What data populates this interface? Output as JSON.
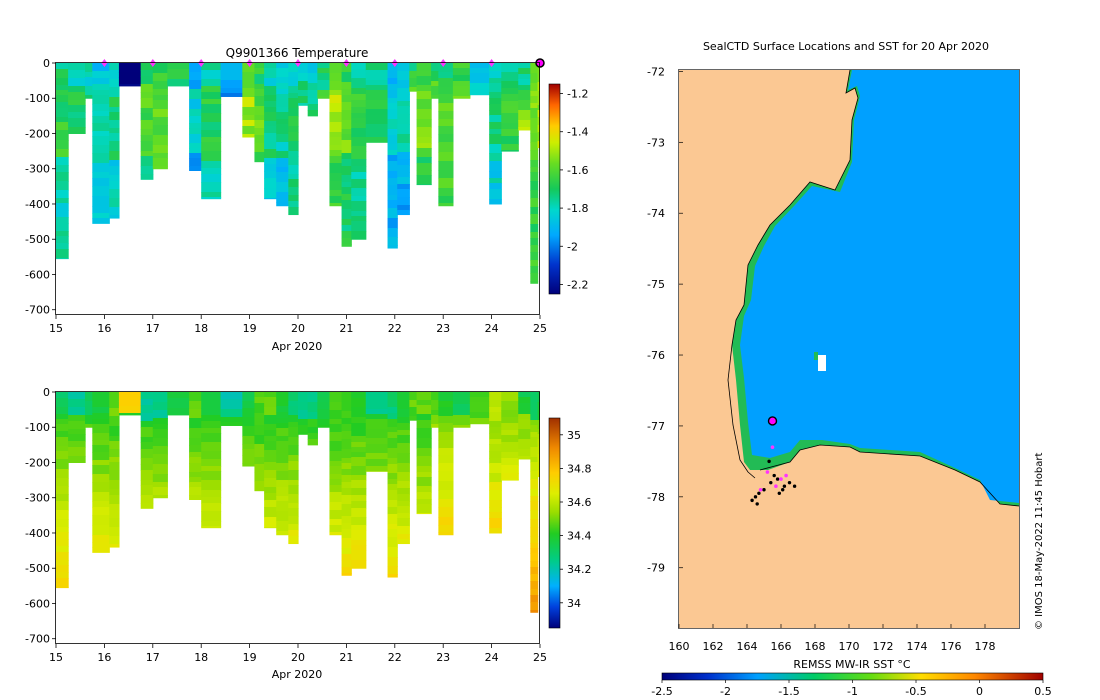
{
  "chart_data": [
    {
      "type": "heatmap",
      "title": "Q9901366  Temperature",
      "variable": "temperature",
      "xlabel": "Apr 2020",
      "x_ticks": [
        "15",
        "16",
        "17",
        "18",
        "19",
        "20",
        "21",
        "22",
        "23",
        "24",
        "25"
      ],
      "xlim": [
        15,
        25
      ],
      "y_ticks": [
        "0",
        "-100",
        "-200",
        "-300",
        "-400",
        "-500",
        "-600",
        "-700"
      ],
      "ylim": [
        -715,
        0
      ],
      "marker_days": [
        16,
        17,
        18,
        19,
        20,
        21,
        22,
        23,
        24
      ],
      "current_marker_day": 25,
      "colorbar": {
        "ticks": [
          "-1.2",
          "-1.4",
          "-1.6",
          "-1.8",
          "-2",
          "-2.2"
        ],
        "range": [
          -2.25,
          -1.15
        ]
      },
      "profiles": [
        {
          "day": 15.0,
          "depth": 555
        },
        {
          "day": 15.25,
          "depth": 200
        },
        {
          "day": 15.6,
          "depth": 100
        },
        {
          "day": 15.75,
          "depth": 455
        },
        {
          "day": 16.1,
          "depth": 440
        },
        {
          "day": 16.3,
          "depth": 65
        },
        {
          "day": 16.75,
          "depth": 330
        },
        {
          "day": 17.0,
          "depth": 300
        },
        {
          "day": 17.3,
          "depth": 65
        },
        {
          "day": 17.75,
          "depth": 305
        },
        {
          "day": 18.0,
          "depth": 385
        },
        {
          "day": 18.4,
          "depth": 95
        },
        {
          "day": 18.85,
          "depth": 210
        },
        {
          "day": 19.1,
          "depth": 280
        },
        {
          "day": 19.3,
          "depth": 385
        },
        {
          "day": 19.55,
          "depth": 405
        },
        {
          "day": 19.8,
          "depth": 430
        },
        {
          "day": 20.0,
          "depth": 120
        },
        {
          "day": 20.2,
          "depth": 150
        },
        {
          "day": 20.4,
          "depth": 100
        },
        {
          "day": 20.65,
          "depth": 405
        },
        {
          "day": 20.9,
          "depth": 520
        },
        {
          "day": 21.1,
          "depth": 500
        },
        {
          "day": 21.4,
          "depth": 225
        },
        {
          "day": 21.85,
          "depth": 525
        },
        {
          "day": 22.05,
          "depth": 430
        },
        {
          "day": 22.3,
          "depth": 80
        },
        {
          "day": 22.45,
          "depth": 345
        },
        {
          "day": 22.75,
          "depth": 100
        },
        {
          "day": 22.9,
          "depth": 405
        },
        {
          "day": 23.2,
          "depth": 100
        },
        {
          "day": 23.55,
          "depth": 90
        },
        {
          "day": 23.95,
          "depth": 400
        },
        {
          "day": 24.2,
          "depth": 250
        },
        {
          "day": 24.55,
          "depth": 190
        },
        {
          "day": 24.8,
          "depth": 625
        },
        {
          "day": 24.95,
          "depth": 240
        }
      ]
    },
    {
      "type": "heatmap",
      "title": "",
      "variable": "salinity",
      "xlabel": "Apr 2020",
      "x_ticks": [
        "15",
        "16",
        "17",
        "18",
        "19",
        "20",
        "21",
        "22",
        "23",
        "24",
        "25"
      ],
      "xlim": [
        15,
        25
      ],
      "y_ticks": [
        "0",
        "-100",
        "-200",
        "-300",
        "-400",
        "-500",
        "-600",
        "-700"
      ],
      "ylim": [
        -715,
        0
      ],
      "colorbar": {
        "ticks": [
          "35",
          "34.8",
          "34.6",
          "34.4",
          "34.2",
          "34"
        ],
        "range": [
          33.85,
          35.1
        ]
      }
    },
    {
      "type": "heatmap",
      "title": "SealCTD Surface Locations and SST for 20 Apr 2020",
      "variable": "sst",
      "x_ticks": [
        "160",
        "162",
        "164",
        "166",
        "168",
        "170",
        "172",
        "174",
        "176",
        "178"
      ],
      "xlim": [
        160,
        180
      ],
      "y_ticks": [
        "-72",
        "-73",
        "-74",
        "-75",
        "-76",
        "-77",
        "-78",
        "-79"
      ],
      "ylim": [
        -79.85,
        -71.98
      ],
      "colorbar": {
        "label": "REMSS MW-IR SST °C",
        "ticks": [
          "-2.5",
          "-2",
          "-1.5",
          "-1",
          "-0.5",
          "0",
          "0.5"
        ],
        "range": [
          -2.5,
          0.5
        ]
      },
      "current_location": {
        "lon": 165.5,
        "lat": -76.93
      },
      "track_points": [
        {
          "lon": 164.3,
          "lat": -78.05
        },
        {
          "lon": 164.5,
          "lat": -78.0
        },
        {
          "lon": 164.7,
          "lat": -77.95
        },
        {
          "lon": 165.0,
          "lat": -77.9
        },
        {
          "lon": 165.4,
          "lat": -77.8
        },
        {
          "lon": 165.8,
          "lat": -77.75
        },
        {
          "lon": 166.2,
          "lat": -77.85
        },
        {
          "lon": 166.5,
          "lat": -77.8
        },
        {
          "lon": 166.1,
          "lat": -77.9
        },
        {
          "lon": 165.6,
          "lat": -77.7
        },
        {
          "lon": 165.3,
          "lat": -77.5
        },
        {
          "lon": 164.6,
          "lat": -78.1
        },
        {
          "lon": 166.8,
          "lat": -77.85
        },
        {
          "lon": 165.9,
          "lat": -77.95
        }
      ],
      "profile_points": [
        {
          "lon": 165.2,
          "lat": -77.65
        },
        {
          "lon": 165.7,
          "lat": -77.85
        },
        {
          "lon": 166.0,
          "lat": -77.75
        },
        {
          "lon": 165.5,
          "lat": -77.3
        },
        {
          "lon": 164.8,
          "lat": -77.9
        },
        {
          "lon": 166.3,
          "lat": -77.7
        }
      ]
    }
  ],
  "credit": "© IMOS 18-May-2022 11:45 Hobart",
  "colors": {
    "land": "#fbc893",
    "ocean": "#00a0ff",
    "marker": "#ff33ff",
    "current_marker": "#ff00ff"
  }
}
